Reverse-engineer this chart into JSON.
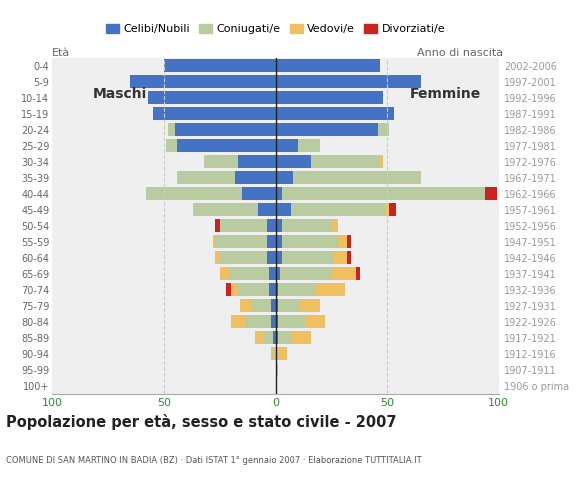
{
  "age_groups": [
    "100+",
    "95-99",
    "90-94",
    "85-89",
    "80-84",
    "75-79",
    "70-74",
    "65-69",
    "60-64",
    "55-59",
    "50-54",
    "45-49",
    "40-44",
    "35-39",
    "30-34",
    "25-29",
    "20-24",
    "15-19",
    "10-14",
    "5-9",
    "0-4"
  ],
  "birth_years": [
    "1906 o prima",
    "1907-1911",
    "1912-1916",
    "1917-1921",
    "1922-1926",
    "1927-1931",
    "1932-1936",
    "1937-1941",
    "1942-1946",
    "1947-1951",
    "1952-1956",
    "1957-1961",
    "1962-1966",
    "1967-1971",
    "1972-1976",
    "1977-1981",
    "1982-1986",
    "1987-1991",
    "1992-1996",
    "1997-2001",
    "2002-2006"
  ],
  "males_celibe": [
    0,
    0,
    0,
    1,
    2,
    2,
    3,
    3,
    4,
    4,
    4,
    8,
    15,
    18,
    17,
    44,
    45,
    55,
    57,
    65,
    50
  ],
  "males_coniugato": [
    0,
    0,
    1,
    4,
    11,
    9,
    14,
    18,
    21,
    23,
    21,
    29,
    43,
    26,
    15,
    5,
    3,
    0,
    0,
    0,
    0
  ],
  "males_vedovo": [
    0,
    0,
    1,
    4,
    7,
    5,
    3,
    4,
    2,
    1,
    0,
    0,
    0,
    0,
    0,
    0,
    0,
    0,
    0,
    0,
    0
  ],
  "males_divorziato": [
    0,
    0,
    0,
    0,
    0,
    0,
    2,
    0,
    0,
    0,
    2,
    0,
    0,
    0,
    0,
    0,
    0,
    0,
    0,
    0,
    0
  ],
  "females_nubile": [
    0,
    0,
    0,
    1,
    1,
    1,
    1,
    2,
    3,
    3,
    3,
    7,
    3,
    8,
    16,
    10,
    46,
    53,
    48,
    65,
    47
  ],
  "females_coniugata": [
    0,
    0,
    1,
    6,
    12,
    10,
    17,
    23,
    23,
    25,
    22,
    42,
    91,
    57,
    31,
    10,
    5,
    0,
    0,
    0,
    0
  ],
  "females_vedova": [
    0,
    1,
    4,
    9,
    9,
    9,
    13,
    11,
    6,
    4,
    3,
    2,
    0,
    0,
    1,
    0,
    0,
    0,
    0,
    0,
    0
  ],
  "females_divorziata": [
    0,
    0,
    0,
    0,
    0,
    0,
    0,
    2,
    2,
    2,
    0,
    3,
    5,
    0,
    0,
    0,
    0,
    0,
    0,
    0,
    0
  ],
  "color_celibe": "#4472c4",
  "color_coniugato": "#b8cca0",
  "color_vedovo": "#f0c060",
  "color_divorziato": "#cc2222",
  "xlim": 100,
  "title": "Popolazione per età, sesso e stato civile - 2007",
  "subtitle": "COMUNE DI SAN MARTINO IN BADIA (BZ) · Dati ISTAT 1° gennaio 2007 · Elaborazione TUTTITALIA.IT",
  "legend_labels": [
    "Celibi/Nubili",
    "Coniugati/e",
    "Vedovi/e",
    "Divorziati/e"
  ],
  "bg_color": "#ffffff",
  "plot_bg_color": "#efefef",
  "grid_dashed_color": "#cccccc",
  "axis_color": "#aaaaaa",
  "label_color": "#666666",
  "birth_year_color": "#999999",
  "green_tick_color": "#338833",
  "center_line_color": "#222222"
}
